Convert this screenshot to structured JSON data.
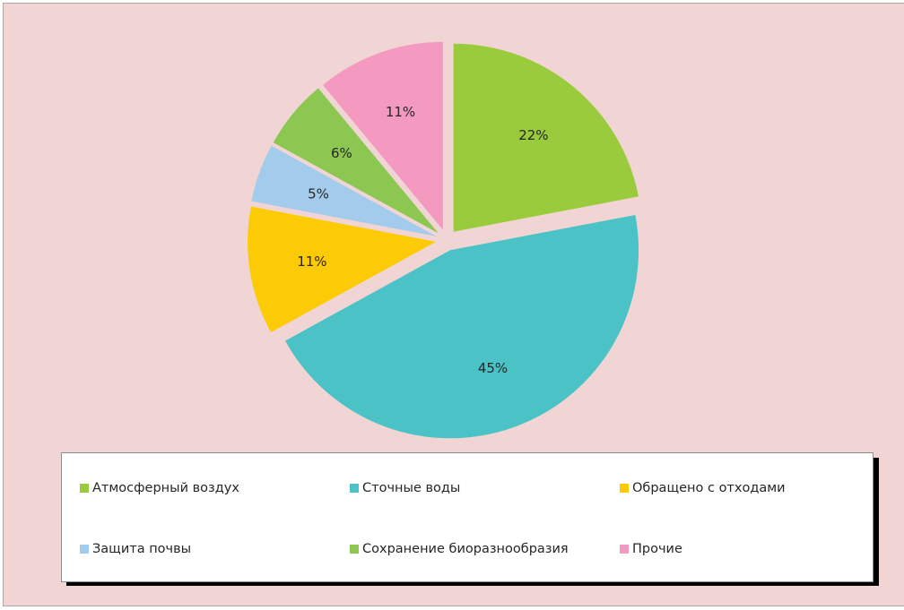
{
  "chart_data": {
    "type": "pie",
    "labels": [
      "Атмосферный воздух",
      "Сточные воды",
      "Обращено с отходами",
      "Защита почвы",
      "Сохранение биоразнообразия",
      "Прочие"
    ],
    "values": [
      22,
      45,
      11,
      5,
      6,
      11
    ],
    "value_labels": [
      "22%",
      "45%",
      "11%",
      "5%",
      "6%",
      "11%"
    ],
    "colors": [
      "#9acb3c",
      "#4bc3c6",
      "#fccb05",
      "#a3cbec",
      "#8bc751",
      "#f49ac1"
    ],
    "start": "12 o'clock",
    "direction": "clockwise",
    "exploded": true,
    "legend_position": "bottom",
    "legend": [
      {
        "label": "Атмосферный воздух",
        "color": "#9acb3c"
      },
      {
        "label": "Сточные воды",
        "color": "#4bc3c6"
      },
      {
        "label": "Обращено с отходами",
        "color": "#fccb05"
      },
      {
        "label": "Защита почвы",
        "color": "#a3cbec"
      },
      {
        "label": "Сохранение биоразнообразия",
        "color": "#8bc751"
      },
      {
        "label": "Прочие",
        "color": "#f49ac1"
      }
    ]
  }
}
